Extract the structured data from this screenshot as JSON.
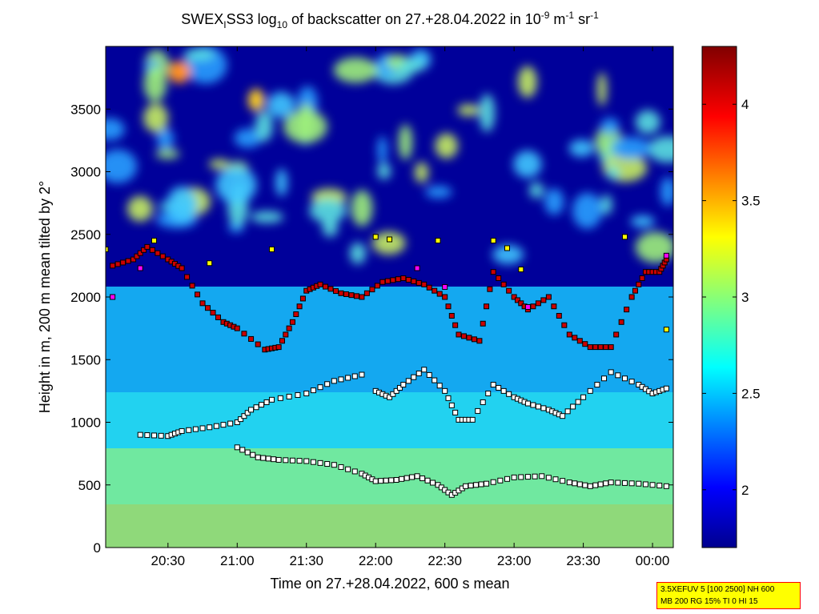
{
  "chart_data": {
    "type": "heatmap",
    "title": {
      "part1": "SWEX",
      "sub1": "I",
      "part2": "SS3 log",
      "sub2": "10",
      "part3": " of backscatter on 27.+28.04.2022 in 10",
      "sup1": "-9",
      "part4": " m",
      "sup2": "-1",
      "part5": " sr",
      "sup3": "-1"
    },
    "xlabel": "Time on 27.+28.04.2022, 600 s mean",
    "ylabel": "Height in m, 200 m mean tilted by 2°",
    "xlim": [
      20.05,
      24.15
    ],
    "ylim": [
      0,
      4000
    ],
    "x_ticks": [
      {
        "v": 20.5,
        "label": "20:30"
      },
      {
        "v": 21.0,
        "label": "21:00"
      },
      {
        "v": 21.5,
        "label": "21:30"
      },
      {
        "v": 22.0,
        "label": "22:00"
      },
      {
        "v": 22.5,
        "label": "22:30"
      },
      {
        "v": 23.0,
        "label": "23:00"
      },
      {
        "v": 23.5,
        "label": "23:30"
      },
      {
        "v": 24.0,
        "label": "00:00"
      }
    ],
    "y_ticks": [
      {
        "v": 0,
        "label": "0"
      },
      {
        "v": 500,
        "label": "500"
      },
      {
        "v": 1000,
        "label": "1000"
      },
      {
        "v": 1500,
        "label": "1500"
      },
      {
        "v": 2000,
        "label": "2000"
      },
      {
        "v": 2500,
        "label": "2500"
      },
      {
        "v": 3000,
        "label": "3000"
      },
      {
        "v": 3500,
        "label": "3500"
      }
    ],
    "colorbar": {
      "range": [
        1.7,
        4.3
      ],
      "ticks": [
        {
          "v": 2.0,
          "label": "2"
        },
        {
          "v": 2.5,
          "label": "2.5"
        },
        {
          "v": 3.0,
          "label": "3"
        },
        {
          "v": 3.5,
          "label": "3.5"
        },
        {
          "v": 4.0,
          "label": "4"
        }
      ],
      "colormap": "jet"
    },
    "layer_markers": [
      {
        "name": "lowest layer",
        "color": "#ffffff",
        "points": [
          [
            20.3,
            900
          ],
          [
            20.5,
            890
          ],
          [
            20.6,
            930
          ],
          [
            20.8,
            960
          ],
          [
            21.0,
            1000
          ],
          [
            21.1,
            1100
          ],
          [
            21.25,
            1180
          ],
          [
            21.5,
            1230
          ],
          [
            21.7,
            1330
          ],
          [
            21.9,
            1380
          ]
        ]
      },
      {
        "name": "lowest layer 2",
        "color": "#ffffff",
        "points": [
          [
            21.0,
            800
          ],
          [
            21.15,
            720
          ],
          [
            21.3,
            700
          ],
          [
            21.5,
            690
          ],
          [
            21.7,
            660
          ],
          [
            21.9,
            590
          ],
          [
            22.0,
            530
          ],
          [
            22.15,
            540
          ],
          [
            22.3,
            570
          ],
          [
            22.45,
            500
          ],
          [
            22.55,
            420
          ],
          [
            22.65,
            490
          ],
          [
            22.8,
            510
          ],
          [
            23.0,
            560
          ],
          [
            23.2,
            570
          ],
          [
            23.4,
            520
          ],
          [
            23.55,
            490
          ],
          [
            23.7,
            520
          ],
          [
            23.9,
            510
          ],
          [
            24.1,
            490
          ]
        ]
      },
      {
        "name": "intermediate layer",
        "color": "#ffffff",
        "points": [
          [
            22.0,
            1250
          ],
          [
            22.1,
            1200
          ],
          [
            22.2,
            1300
          ],
          [
            22.35,
            1420
          ],
          [
            22.5,
            1250
          ],
          [
            22.6,
            1020
          ],
          [
            22.7,
            1020
          ],
          [
            22.85,
            1300
          ],
          [
            23.0,
            1200
          ],
          [
            23.1,
            1150
          ],
          [
            23.25,
            1100
          ],
          [
            23.35,
            1050
          ],
          [
            23.5,
            1200
          ],
          [
            23.7,
            1400
          ],
          [
            23.9,
            1300
          ],
          [
            24.0,
            1230
          ],
          [
            24.1,
            1270
          ]
        ]
      },
      {
        "name": "upper layer",
        "color": "#cc0000",
        "points": [
          [
            20.1,
            2250
          ],
          [
            20.25,
            2300
          ],
          [
            20.35,
            2400
          ],
          [
            20.5,
            2300
          ],
          [
            20.6,
            2230
          ],
          [
            20.75,
            1950
          ],
          [
            20.9,
            1800
          ],
          [
            21.0,
            1750
          ],
          [
            21.2,
            1580
          ],
          [
            21.3,
            1600
          ],
          [
            21.4,
            1800
          ],
          [
            21.5,
            2050
          ],
          [
            21.6,
            2100
          ],
          [
            21.75,
            2030
          ],
          [
            21.9,
            2000
          ],
          [
            22.05,
            2120
          ],
          [
            22.2,
            2150
          ],
          [
            22.35,
            2100
          ],
          [
            22.5,
            2000
          ],
          [
            22.6,
            1700
          ],
          [
            22.75,
            1650
          ],
          [
            22.85,
            2200
          ],
          [
            23.0,
            2000
          ],
          [
            23.1,
            1900
          ],
          [
            23.25,
            2000
          ],
          [
            23.4,
            1700
          ],
          [
            23.55,
            1600
          ],
          [
            23.7,
            1600
          ],
          [
            23.85,
            2000
          ],
          [
            23.95,
            2200
          ],
          [
            24.05,
            2200
          ],
          [
            24.1,
            2300
          ]
        ]
      },
      {
        "name": "top markers",
        "color": "#ffff00",
        "points": [
          [
            20.05,
            2380
          ],
          [
            20.4,
            2450
          ],
          [
            20.8,
            2270
          ],
          [
            21.25,
            2380
          ],
          [
            22.0,
            2480
          ],
          [
            22.1,
            2460
          ],
          [
            22.45,
            2450
          ],
          [
            22.85,
            2450
          ],
          [
            22.95,
            2390
          ],
          [
            23.05,
            2220
          ],
          [
            23.8,
            2480
          ],
          [
            24.1,
            1740
          ]
        ]
      },
      {
        "name": "magenta markers",
        "color": "#ff00ff",
        "points": [
          [
            20.1,
            2000
          ],
          [
            20.3,
            2230
          ],
          [
            22.3,
            2230
          ],
          [
            22.5,
            2080
          ],
          [
            23.1,
            1920
          ],
          [
            24.1,
            2330
          ]
        ]
      }
    ]
  },
  "info_box": {
    "line1": "3.5XEFUV 5 [100 2500] NH 600",
    "line2": "MB 200 RG 15% TI 0 HI 15"
  }
}
